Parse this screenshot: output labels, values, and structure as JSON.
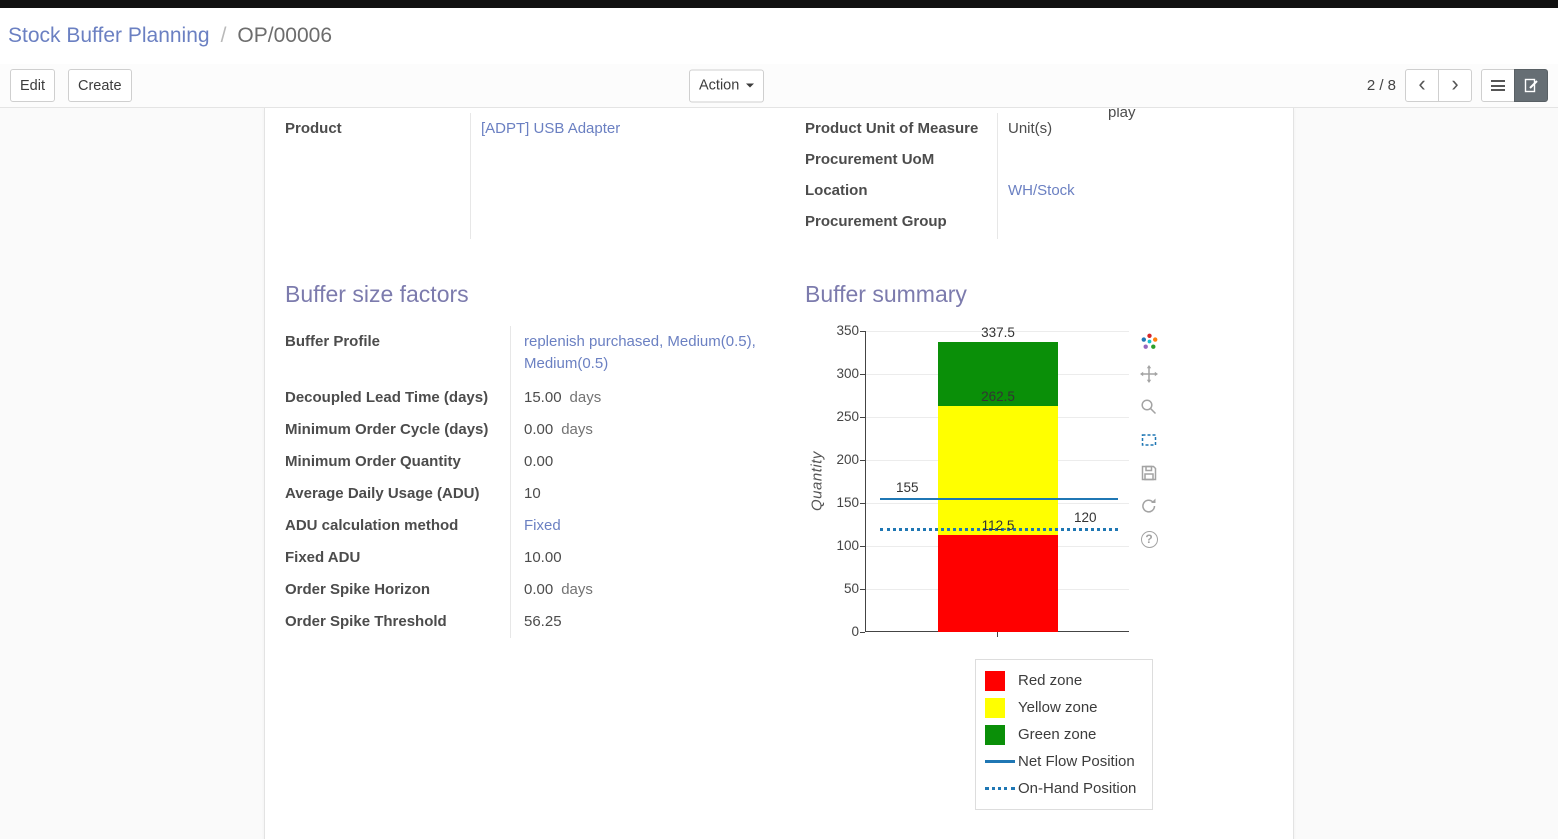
{
  "breadcrumb": {
    "parent": "Stock Buffer Planning",
    "separator": "/",
    "current": "OP/00006"
  },
  "toolbar": {
    "edit": "Edit",
    "create": "Create",
    "action": "Action",
    "pager": "2 / 8"
  },
  "icons": {
    "prev": "‹",
    "next": "›",
    "help": "?"
  },
  "colors": {
    "link": "#6b80c2",
    "heading": "#7c7bad",
    "red_zone": "#ff0000",
    "yellow_zone": "#ffff00",
    "green_zone": "#0a8f08",
    "flow_line": "#1f77b4"
  },
  "fields": {
    "clipped_fragment": "play",
    "left": [
      {
        "label": "Product",
        "value": "[ADPT] USB Adapter",
        "link": true
      }
    ],
    "right": [
      {
        "label": "Product Unit of Measure",
        "value": "Unit(s)"
      },
      {
        "label": "Procurement UoM",
        "value": ""
      },
      {
        "label": "Location",
        "value": "WH/Stock",
        "link": true
      },
      {
        "label": "Procurement Group",
        "value": ""
      }
    ]
  },
  "sections": {
    "factors_title": "Buffer size factors",
    "summary_title": "Buffer summary"
  },
  "factors": [
    {
      "label": "Buffer Profile",
      "value": "replenish purchased, Medium(0.5), Medium(0.5)",
      "link": true
    },
    {
      "label": "Decoupled Lead Time (days)",
      "value": "15.00",
      "suffix": "days"
    },
    {
      "label": "Minimum Order Cycle (days)",
      "value": "0.00",
      "suffix": "days"
    },
    {
      "label": "Minimum Order Quantity",
      "value": "0.00"
    },
    {
      "label": "Average Daily Usage (ADU)",
      "value": "10"
    },
    {
      "label": "ADU calculation method",
      "value": "Fixed",
      "link": true
    },
    {
      "label": "Fixed ADU",
      "value": "10.00"
    },
    {
      "label": "Order Spike Horizon",
      "value": "0.00",
      "suffix": "days"
    },
    {
      "label": "Order Spike Threshold",
      "value": "56.25"
    }
  ],
  "chart_data": {
    "type": "bar",
    "title": "",
    "ylabel": "Quantity",
    "ylim": [
      0,
      350
    ],
    "yticks": [
      0,
      50,
      100,
      150,
      200,
      250,
      300,
      350
    ],
    "grid": true,
    "segments": [
      {
        "name": "Red zone",
        "value": 112.5,
        "cumulative": 112.5,
        "color": "#ff0000",
        "label": "112.5"
      },
      {
        "name": "Yellow zone",
        "value": 150,
        "cumulative": 262.5,
        "color": "#ffff00",
        "label": "262.5"
      },
      {
        "name": "Green zone",
        "value": 75,
        "cumulative": 337.5,
        "color": "#0a8f08",
        "label": "337.5"
      }
    ],
    "lines": [
      {
        "name": "Net Flow Position",
        "value": 155,
        "style": "solid",
        "color": "#1f77b4",
        "label": "155",
        "label_pos": "left"
      },
      {
        "name": "On-Hand Position",
        "value": 120,
        "style": "dotted",
        "color": "#1f77b4",
        "label": "120",
        "label_pos": "right"
      }
    ],
    "legend": [
      {
        "label": "Red zone",
        "swatch": "square",
        "color": "#ff0000"
      },
      {
        "label": "Yellow zone",
        "swatch": "square",
        "color": "#ffff00"
      },
      {
        "label": "Green zone",
        "swatch": "square",
        "color": "#0a8f08"
      },
      {
        "label": "Net Flow Position",
        "swatch": "line",
        "color": "#1f77b4"
      },
      {
        "label": "On-Hand Position",
        "swatch": "dotted",
        "color": "#1f77b4"
      }
    ],
    "legend_position": "below-right",
    "modebar": [
      "plotly-logo-icon",
      "pan-icon",
      "zoom-icon",
      "box-select-icon",
      "save-icon",
      "reset-axes-icon",
      "help-icon"
    ],
    "modebar_active": "box-select-icon"
  }
}
